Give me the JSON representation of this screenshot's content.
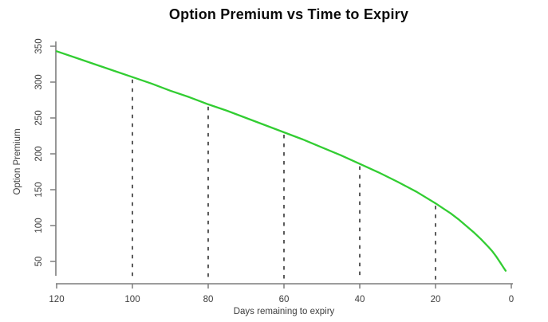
{
  "figure": {
    "background": "#ffffff"
  },
  "chart_data": {
    "type": "line",
    "title": "Option Premium vs Time to Expiry",
    "xlabel": "Days remaining to expiry",
    "ylabel": "Option Premium",
    "grid": false,
    "legend": "none",
    "x_axis": {
      "label": "Days remaining to expiry",
      "reversed": true,
      "min": 0,
      "max": 120,
      "ticks": [
        120,
        100,
        80,
        60,
        40,
        20,
        0
      ]
    },
    "y_axis": {
      "label": "Option Premium",
      "ticks": [
        50,
        100,
        150,
        200,
        250,
        300,
        350
      ],
      "shown_range": [
        25,
        355
      ]
    },
    "series": [
      {
        "name": "option-premium-curve",
        "color": "#32cd32",
        "points": [
          [
            120,
            343
          ],
          [
            115,
            334
          ],
          [
            110,
            325
          ],
          [
            105,
            316
          ],
          [
            100,
            307
          ],
          [
            95,
            298
          ],
          [
            90,
            288
          ],
          [
            85,
            279
          ],
          [
            80,
            269
          ],
          [
            75,
            260
          ],
          [
            70,
            250
          ],
          [
            65,
            240
          ],
          [
            60,
            230
          ],
          [
            55,
            220
          ],
          [
            50,
            209
          ],
          [
            45,
            198
          ],
          [
            40,
            186
          ],
          [
            35,
            174
          ],
          [
            30,
            161
          ],
          [
            25,
            147
          ],
          [
            20,
            131
          ],
          [
            18,
            124
          ],
          [
            16,
            117
          ],
          [
            14,
            109
          ],
          [
            12,
            100
          ],
          [
            10,
            91
          ],
          [
            8,
            81
          ],
          [
            6,
            70
          ],
          [
            5,
            64
          ],
          [
            4,
            57
          ],
          [
            3,
            49
          ],
          [
            2,
            41
          ],
          [
            1.5,
            37
          ]
        ]
      }
    ],
    "guides": {
      "style": "dashed",
      "color": "#3f3f3f",
      "days": [
        100,
        80,
        60,
        40,
        20
      ]
    },
    "colors": {
      "axis": "#7d7d7d",
      "tick_label": "#3d3d3d",
      "title": "#0a0a0a"
    }
  }
}
